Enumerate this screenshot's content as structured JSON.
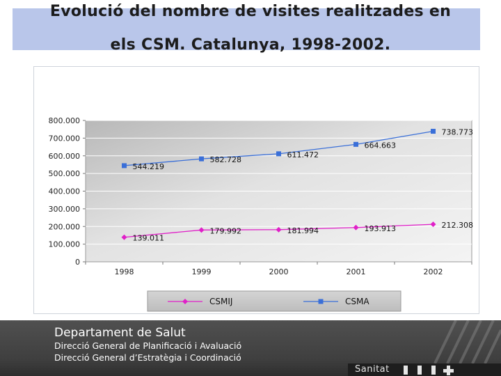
{
  "slide": {
    "title_line1": "Evolució del nombre de visites realitzades en",
    "title_line2": "els  CSM. Catalunya, 1998-2002."
  },
  "chart_data": {
    "type": "line",
    "title": "",
    "xlabel": "",
    "ylabel": "",
    "categories": [
      "1998",
      "1999",
      "2000",
      "2001",
      "2002"
    ],
    "ylim": [
      0,
      800000
    ],
    "yticks": [
      0,
      100000,
      200000,
      300000,
      400000,
      500000,
      600000,
      700000,
      800000
    ],
    "ytick_labels": [
      "0",
      "100.000",
      "200.000",
      "300.000",
      "400.000",
      "500.000",
      "600.000",
      "700.000",
      "800.000"
    ],
    "grid": true,
    "legend_position": "bottom",
    "series": [
      {
        "name": "CSMIJ",
        "color": "#e020c8",
        "marker": "diamond",
        "values": [
          139011,
          179992,
          181994,
          193913,
          212308
        ],
        "labels": [
          "139.011",
          "179.992",
          "181.994",
          "193.913",
          "212.308"
        ]
      },
      {
        "name": "CSMA",
        "color": "#3a6fd8",
        "marker": "square",
        "values": [
          544219,
          582728,
          611472,
          664663,
          738773
        ],
        "labels": [
          "544.219",
          "582.728",
          "611.472",
          "664.663",
          "738.773"
        ]
      }
    ]
  },
  "footer": {
    "department": "Departament de Salut",
    "line1": "Direcció General de Planificació i Avaluació",
    "line2": "Direcció General d’Estratègia i Coordinació",
    "brand": "Sanitat"
  }
}
